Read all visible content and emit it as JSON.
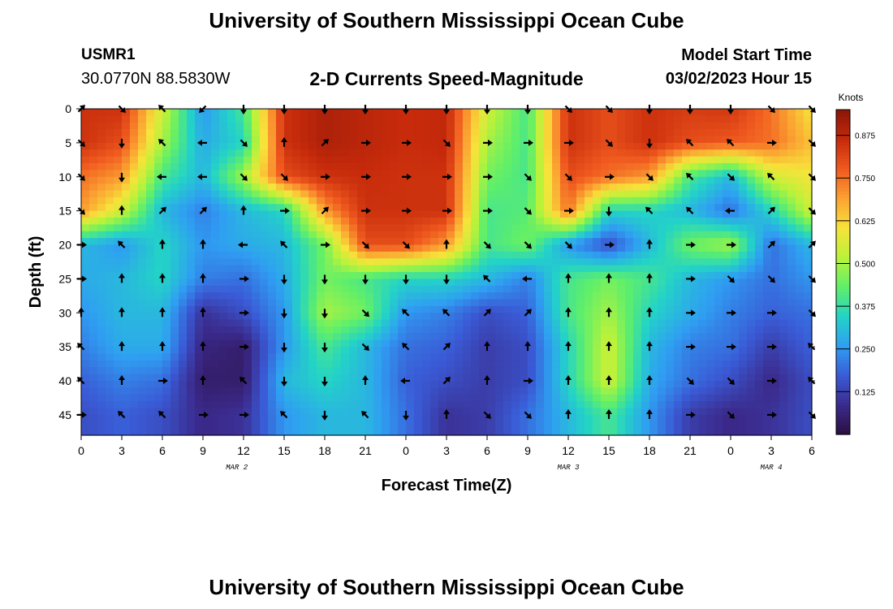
{
  "page": {
    "title": "University of Southern Mississippi Ocean Cube",
    "title_repeat": "University of Southern Mississippi Ocean Cube",
    "station_id": "USMR1",
    "station_coords": "30.0770N  88.5830W",
    "subtitle": "2-D Currents Speed-Magnitude",
    "model_start_label": "Model Start Time",
    "model_start_value": "03/02/2023 Hour 15"
  },
  "chart_data": {
    "type": "heatmap",
    "title": "2-D Currents Speed-Magnitude",
    "xlabel": "Forecast Time(Z)",
    "ylabel": "Depth (ft)",
    "colorbar_label": "Knots",
    "colorbar_ticks": [
      "0.875",
      "0.750",
      "0.625",
      "0.500",
      "0.375",
      "0.250",
      "0.125"
    ],
    "colorbar_range": [
      0,
      0.95
    ],
    "colormap": [
      "#2b0f3f",
      "#3b2a8c",
      "#3a5bd6",
      "#2f9ef2",
      "#23d3c7",
      "#5fef6a",
      "#b9f23a",
      "#f7e33a",
      "#fba232",
      "#f05a1f",
      "#c62a0b",
      "#8a1608"
    ],
    "x_tick_labels": [
      "0",
      "3",
      "6",
      "9",
      "12",
      "15",
      "18",
      "21",
      "0",
      "3",
      "6",
      "9",
      "12",
      "15",
      "18",
      "21",
      "0",
      "3",
      "6"
    ],
    "x_hours": [
      0,
      3,
      6,
      9,
      12,
      15,
      18,
      21,
      24,
      27,
      30,
      33,
      36,
      39,
      42,
      45,
      48,
      51,
      54
    ],
    "x_range_hours": [
      0,
      54
    ],
    "day_labels": [
      {
        "text": "MAR 2",
        "hour": 11.5
      },
      {
        "text": "MAR 3",
        "hour": 36
      },
      {
        "text": "MAR 4",
        "hour": 51
      }
    ],
    "y_tick_labels": [
      "0",
      "5",
      "10",
      "15",
      "20",
      "25",
      "30",
      "35",
      "40",
      "45"
    ],
    "y_depths": [
      0,
      5,
      10,
      15,
      20,
      25,
      30,
      35,
      40,
      45
    ],
    "y_range_ft": [
      0,
      48
    ],
    "grid_depths": [
      0,
      5,
      10,
      15,
      20,
      25,
      30,
      35,
      40,
      45
    ],
    "speed_knots": [
      [
        0.85,
        0.85,
        0.55,
        0.25,
        0.4,
        0.85,
        0.9,
        0.88,
        0.86,
        0.87,
        0.55,
        0.4,
        0.85,
        0.8,
        0.85,
        0.83,
        0.84,
        0.75,
        0.6
      ],
      [
        0.85,
        0.8,
        0.5,
        0.28,
        0.35,
        0.85,
        0.9,
        0.88,
        0.86,
        0.87,
        0.5,
        0.4,
        0.85,
        0.8,
        0.85,
        0.8,
        0.78,
        0.75,
        0.65
      ],
      [
        0.75,
        0.7,
        0.4,
        0.3,
        0.5,
        0.8,
        0.85,
        0.86,
        0.85,
        0.85,
        0.45,
        0.4,
        0.8,
        0.75,
        0.7,
        0.4,
        0.3,
        0.55,
        0.6
      ],
      [
        0.7,
        0.55,
        0.3,
        0.22,
        0.3,
        0.35,
        0.7,
        0.85,
        0.85,
        0.85,
        0.4,
        0.42,
        0.75,
        0.35,
        0.35,
        0.3,
        0.2,
        0.35,
        0.55
      ],
      [
        0.3,
        0.25,
        0.35,
        0.25,
        0.28,
        0.3,
        0.45,
        0.8,
        0.8,
        0.7,
        0.4,
        0.45,
        0.25,
        0.15,
        0.3,
        0.45,
        0.5,
        0.2,
        0.3
      ],
      [
        0.28,
        0.3,
        0.35,
        0.22,
        0.2,
        0.28,
        0.45,
        0.4,
        0.35,
        0.35,
        0.3,
        0.22,
        0.4,
        0.45,
        0.4,
        0.3,
        0.25,
        0.2,
        0.25
      ],
      [
        0.25,
        0.3,
        0.3,
        0.1,
        0.15,
        0.25,
        0.5,
        0.45,
        0.25,
        0.22,
        0.15,
        0.18,
        0.4,
        0.5,
        0.35,
        0.28,
        0.22,
        0.18,
        0.2
      ],
      [
        0.22,
        0.28,
        0.28,
        0.07,
        0.05,
        0.25,
        0.4,
        0.3,
        0.2,
        0.18,
        0.12,
        0.15,
        0.35,
        0.55,
        0.3,
        0.22,
        0.2,
        0.12,
        0.18
      ],
      [
        0.18,
        0.22,
        0.2,
        0.05,
        0.05,
        0.3,
        0.35,
        0.3,
        0.18,
        0.15,
        0.12,
        0.15,
        0.35,
        0.55,
        0.28,
        0.2,
        0.15,
        0.08,
        0.15
      ],
      [
        0.15,
        0.18,
        0.15,
        0.08,
        0.1,
        0.25,
        0.3,
        0.3,
        0.2,
        0.1,
        0.12,
        0.2,
        0.3,
        0.4,
        0.25,
        0.12,
        0.08,
        0.1,
        0.15
      ]
    ],
    "arrow_angles_deg": [
      [
        315,
        45,
        225,
        135,
        90,
        90,
        90,
        90,
        90,
        90,
        90,
        90,
        45,
        45,
        90,
        90,
        90,
        45,
        45
      ],
      [
        45,
        90,
        225,
        180,
        45,
        270,
        315,
        0,
        0,
        45,
        0,
        0,
        0,
        45,
        90,
        225,
        225,
        0,
        45
      ],
      [
        45,
        90,
        180,
        180,
        45,
        45,
        0,
        0,
        0,
        0,
        0,
        45,
        45,
        0,
        45,
        225,
        45,
        225,
        45
      ],
      [
        45,
        270,
        315,
        315,
        270,
        0,
        315,
        0,
        0,
        0,
        0,
        45,
        0,
        90,
        225,
        225,
        180,
        315,
        45
      ],
      [
        0,
        225,
        270,
        270,
        180,
        225,
        0,
        45,
        45,
        270,
        45,
        45,
        45,
        0,
        270,
        0,
        0,
        315,
        315
      ],
      [
        0,
        270,
        270,
        270,
        0,
        90,
        90,
        90,
        90,
        90,
        225,
        180,
        270,
        270,
        270,
        0,
        45,
        45,
        45
      ],
      [
        270,
        270,
        270,
        270,
        0,
        90,
        90,
        45,
        225,
        225,
        315,
        315,
        270,
        270,
        270,
        0,
        0,
        0,
        45
      ],
      [
        225,
        270,
        270,
        270,
        0,
        90,
        90,
        45,
        225,
        315,
        270,
        270,
        270,
        270,
        270,
        0,
        0,
        0,
        225
      ],
      [
        225,
        270,
        0,
        270,
        225,
        90,
        90,
        270,
        180,
        315,
        270,
        0,
        270,
        270,
        270,
        45,
        45,
        0,
        225
      ],
      [
        0,
        225,
        225,
        0,
        0,
        225,
        90,
        225,
        90,
        270,
        45,
        45,
        270,
        270,
        270,
        0,
        45,
        0,
        45
      ]
    ]
  }
}
